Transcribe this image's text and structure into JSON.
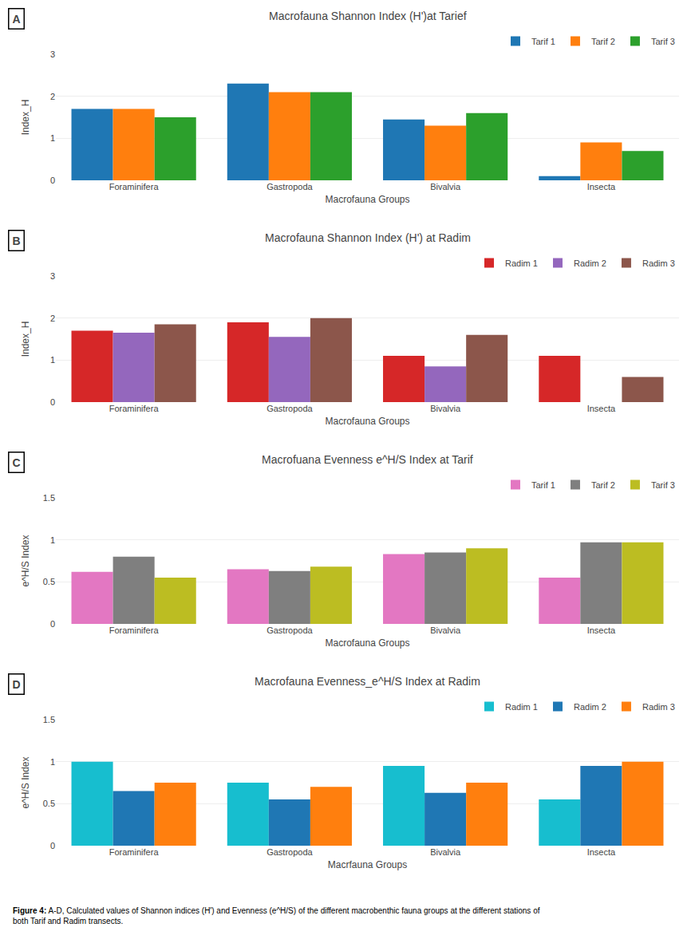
{
  "chart_data": [
    {
      "type": "bar",
      "title": "Macrofauna Shannon Index (H')at Tarief",
      "xlabel": "Macrofauna Groups",
      "ylabel": "Index_H",
      "categories": [
        "Foraminifera",
        "Gastropoda",
        "Bivalvia",
        "Insecta"
      ],
      "series": [
        {
          "name": "Tarif 1",
          "values": [
            1.7,
            2.3,
            1.45,
            0.1
          ]
        },
        {
          "name": "Tarif 2",
          "values": [
            1.7,
            2.1,
            1.3,
            0.9
          ]
        },
        {
          "name": "Tarif 3",
          "values": [
            1.5,
            2.1,
            1.6,
            0.7
          ]
        }
      ],
      "ylim": [
        0,
        3
      ],
      "yticks": [
        0,
        1,
        2,
        3
      ],
      "grid": true,
      "legend": "upper right",
      "annotations": [
        "A"
      ]
    },
    {
      "type": "bar",
      "title": "Macrofauna Shannon Index (H') at Radim",
      "xlabel": "Macrofauna Groups",
      "ylabel": "Index_H",
      "categories": [
        "Foraminifera",
        "Gastropoda",
        "Bivalvia",
        "Insecta"
      ],
      "series": [
        {
          "name": "Radim 1",
          "values": [
            1.7,
            1.9,
            1.1,
            1.1
          ]
        },
        {
          "name": "Radim 2",
          "values": [
            1.65,
            1.55,
            0.85,
            0.0
          ]
        },
        {
          "name": "Radim 3",
          "values": [
            1.85,
            2.0,
            1.6,
            0.6
          ]
        }
      ],
      "ylim": [
        0,
        3
      ],
      "yticks": [
        0,
        1,
        2,
        3
      ],
      "grid": true,
      "legend": "upper right",
      "annotations": [
        "B"
      ]
    },
    {
      "type": "bar",
      "title": "Macrofuana Evenness e^H/S Index at Tarif",
      "xlabel": "Macrofauna Groups",
      "ylabel": "e^H/S Index",
      "categories": [
        "Foraminifera",
        "Gastropoda",
        "Bivalvia",
        "Insecta"
      ],
      "series": [
        {
          "name": "Tarif 1",
          "values": [
            0.62,
            0.65,
            0.83,
            0.55
          ]
        },
        {
          "name": "Tarif 2",
          "values": [
            0.8,
            0.63,
            0.85,
            0.97
          ]
        },
        {
          "name": "Tarif 3",
          "values": [
            0.55,
            0.68,
            0.9,
            0.97
          ]
        }
      ],
      "ylim": [
        0,
        1.5
      ],
      "yticks": [
        0,
        0.5,
        1,
        1.5
      ],
      "grid": true,
      "legend": "upper right",
      "annotations": [
        "C"
      ]
    },
    {
      "type": "bar",
      "title": "Macrofauna Evenness_e^H/S Index at Radim",
      "xlabel": "Macrfauna Groups",
      "ylabel": "e^H/S Index",
      "categories": [
        "Foraminifera",
        "Gastropoda",
        "Bivalvia",
        "Insecta"
      ],
      "series": [
        {
          "name": "Radim 1",
          "values": [
            1.0,
            0.75,
            0.95,
            0.55
          ]
        },
        {
          "name": "Radim 2",
          "values": [
            0.65,
            0.55,
            0.63,
            0.95
          ]
        },
        {
          "name": "Radim 3",
          "values": [
            0.75,
            0.7,
            0.75,
            1.0
          ]
        }
      ],
      "ylim": [
        0,
        1.5
      ],
      "yticks": [
        0,
        0.5,
        1,
        1.5
      ],
      "grid": true,
      "legend": "upper right",
      "annotations": [
        "D"
      ]
    }
  ],
  "caption": {
    "bold": "Figure 4:",
    "text": "A-D, Calculated values of Shannon indices (H') and Evenness (e^H/S) of the different macrobenthic fauna groups at the different stations of\nboth Tarif and Radim transects."
  }
}
